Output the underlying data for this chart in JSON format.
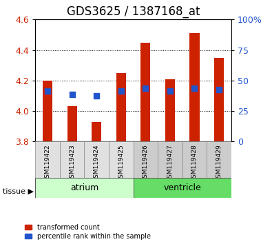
{
  "title": "GDS3625 / 1387168_at",
  "samples": [
    "GSM119422",
    "GSM119423",
    "GSM119424",
    "GSM119425",
    "GSM119426",
    "GSM119427",
    "GSM119428",
    "GSM119429"
  ],
  "red_values": [
    4.2,
    4.03,
    3.93,
    4.25,
    4.45,
    4.21,
    4.51,
    4.35
  ],
  "blue_values": [
    4.13,
    4.11,
    4.1,
    4.13,
    4.15,
    4.13,
    4.15,
    4.14
  ],
  "ymin": 3.8,
  "ymax": 4.6,
  "yticks_left": [
    3.8,
    4.0,
    4.2,
    4.4,
    4.6
  ],
  "yticks_right": [
    0,
    25,
    50,
    75,
    100
  ],
  "tissue_groups": [
    {
      "label": "atrium",
      "start": 0,
      "end": 3,
      "color": "#ccffcc"
    },
    {
      "label": "ventricle",
      "start": 4,
      "end": 7,
      "color": "#66dd66"
    }
  ],
  "bar_color": "#cc2200",
  "dot_color": "#2255cc",
  "bar_width": 0.4,
  "dot_size": 40,
  "left_tick_color": "#cc2200",
  "right_tick_color": "#2255cc",
  "title_fontsize": 12,
  "tick_fontsize": 9,
  "label_fontsize": 9,
  "grid_color": "#000000",
  "background_left": "#e0e0e0",
  "background_right": "#cccccc"
}
